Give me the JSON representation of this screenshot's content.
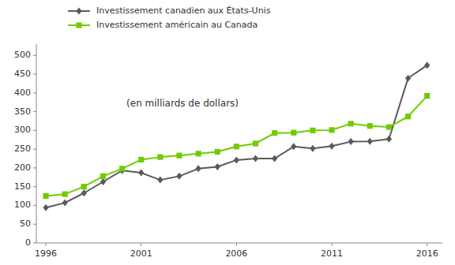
{
  "chart_data": {
    "type": "line",
    "subtitle": "(en milliards de dollars)",
    "x": [
      1996,
      1997,
      1998,
      1999,
      2000,
      2001,
      2002,
      2003,
      2004,
      2005,
      2006,
      2007,
      2008,
      2009,
      2010,
      2011,
      2012,
      2013,
      2014,
      2015,
      2016
    ],
    "series": [
      {
        "name": "Investissement canadien aux États-Unis",
        "color": "#595959",
        "marker": "diamond",
        "values": [
          94,
          107,
          133,
          163,
          193,
          187,
          168,
          178,
          198,
          203,
          221,
          225,
          225,
          257,
          252,
          258,
          270,
          271,
          277,
          439,
          474
        ]
      },
      {
        "name": "Investissement américain au Canada",
        "color": "#70cc00",
        "marker": "square",
        "values": [
          125,
          130,
          150,
          178,
          198,
          222,
          229,
          233,
          238,
          243,
          257,
          265,
          293,
          294,
          300,
          301,
          318,
          312,
          309,
          337,
          392
        ]
      }
    ],
    "xlim": [
      1995.5,
      2016.8
    ],
    "xticks": [
      1996,
      2001,
      2006,
      2011,
      2016
    ],
    "ylim": [
      0,
      530
    ],
    "yticks": [
      0,
      50,
      100,
      150,
      200,
      250,
      300,
      350,
      400,
      450,
      500
    ],
    "grid": false,
    "legend": "top"
  }
}
